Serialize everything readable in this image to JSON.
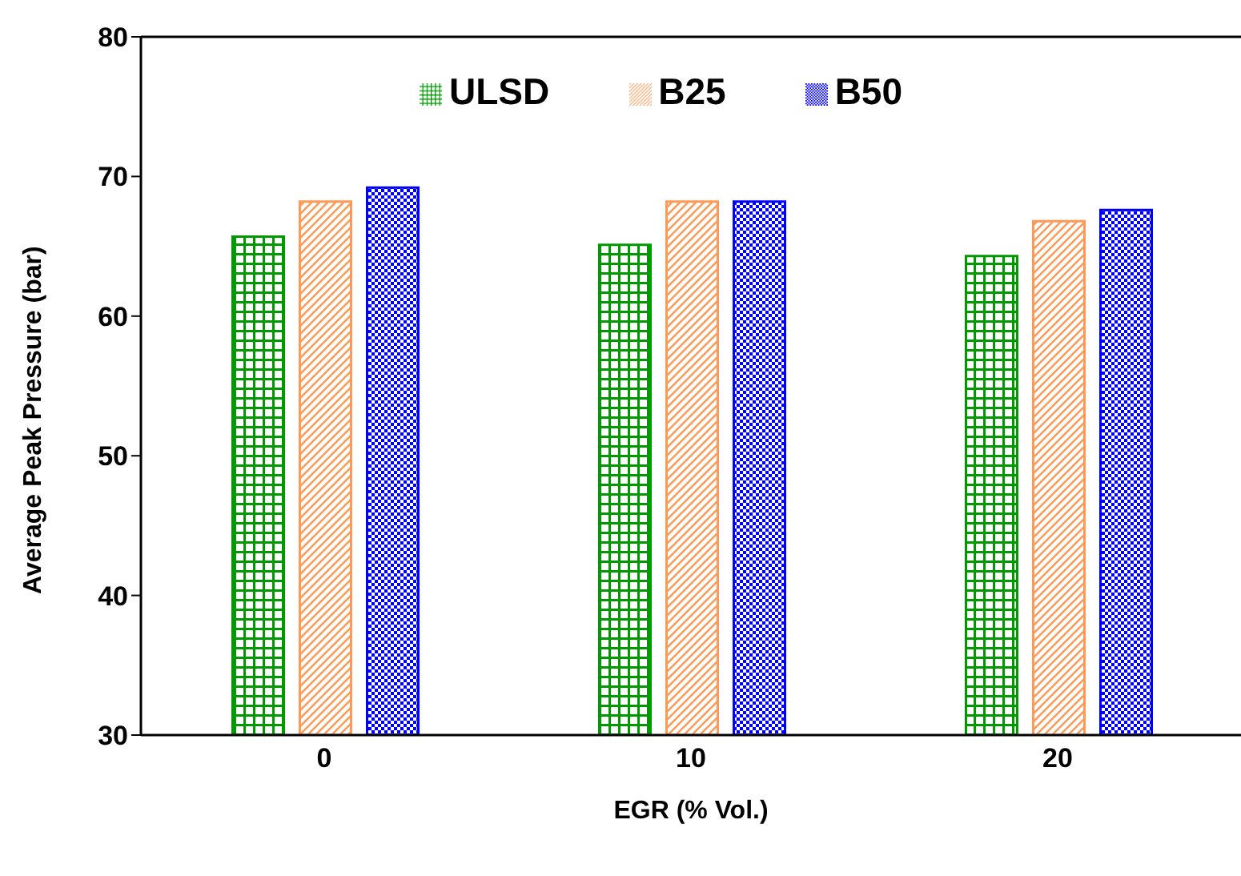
{
  "chart_data": {
    "type": "bar",
    "xlabel": "EGR (% Vol.)",
    "ylabel": "Average Peak Pressure (bar)",
    "categories": [
      "0",
      "10",
      "20"
    ],
    "series": [
      {
        "name": "ULSD",
        "color": "#009900",
        "values": [
          65.7,
          65.1,
          64.3
        ]
      },
      {
        "name": "B25",
        "color": "#ff9955",
        "values": [
          68.2,
          68.2,
          66.8
        ]
      },
      {
        "name": "B50",
        "color": "#0000ff",
        "values": [
          69.2,
          68.2,
          67.6
        ]
      }
    ],
    "ylim": [
      30,
      80
    ],
    "yticks": [
      30,
      40,
      50,
      60,
      70,
      80
    ],
    "grid": false,
    "legend": "top"
  }
}
